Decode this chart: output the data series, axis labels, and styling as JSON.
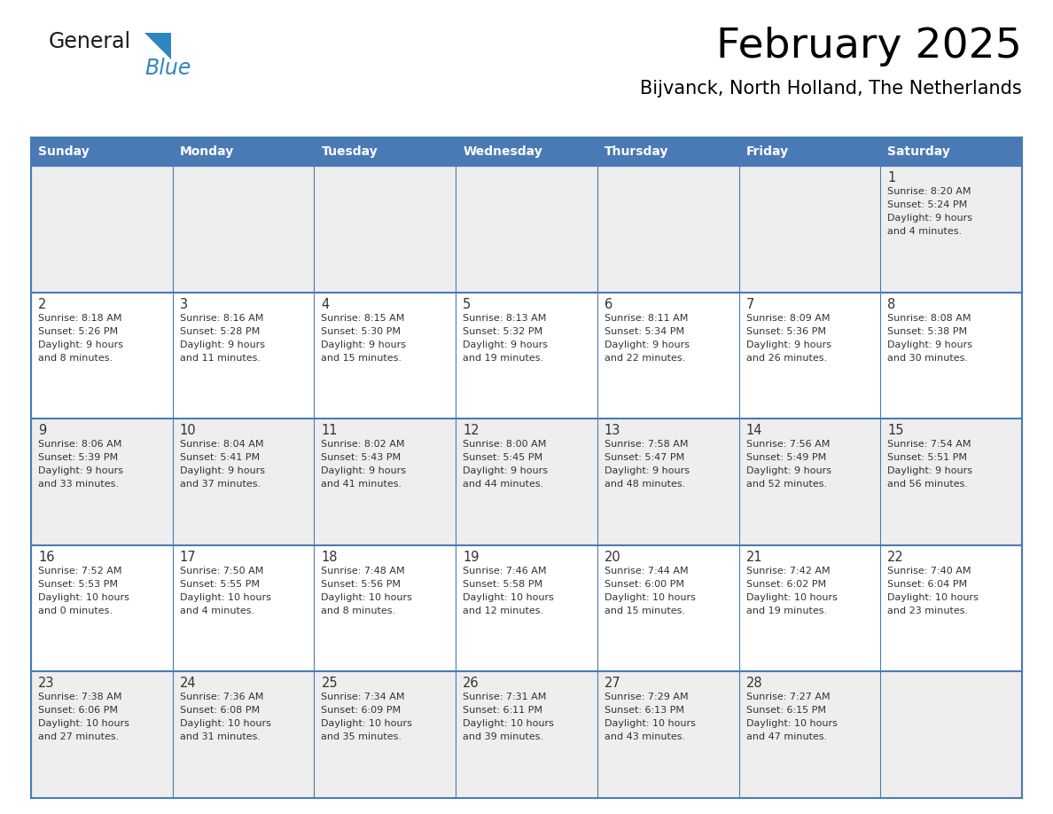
{
  "title": "February 2025",
  "subtitle": "Bijvanck, North Holland, The Netherlands",
  "header_bg": "#4a7ab5",
  "header_text": "#FFFFFF",
  "cell_bg_row0": "#EEEEEE",
  "cell_bg_row1": "#FFFFFF",
  "cell_bg_row2": "#EEEEEE",
  "cell_bg_row3": "#FFFFFF",
  "cell_bg_row4": "#EEEEEE",
  "border_color": "#4a7ab5",
  "day_number_color": "#333333",
  "cell_text_color": "#333333",
  "days_of_week": [
    "Sunday",
    "Monday",
    "Tuesday",
    "Wednesday",
    "Thursday",
    "Friday",
    "Saturday"
  ],
  "calendar": [
    [
      null,
      null,
      null,
      null,
      null,
      null,
      {
        "day": "1",
        "sunrise": "8:20 AM",
        "sunset": "5:24 PM",
        "daylight": "9 hours",
        "daylight2": "and 4 minutes."
      }
    ],
    [
      {
        "day": "2",
        "sunrise": "8:18 AM",
        "sunset": "5:26 PM",
        "daylight": "9 hours",
        "daylight2": "and 8 minutes."
      },
      {
        "day": "3",
        "sunrise": "8:16 AM",
        "sunset": "5:28 PM",
        "daylight": "9 hours",
        "daylight2": "and 11 minutes."
      },
      {
        "day": "4",
        "sunrise": "8:15 AM",
        "sunset": "5:30 PM",
        "daylight": "9 hours",
        "daylight2": "and 15 minutes."
      },
      {
        "day": "5",
        "sunrise": "8:13 AM",
        "sunset": "5:32 PM",
        "daylight": "9 hours",
        "daylight2": "and 19 minutes."
      },
      {
        "day": "6",
        "sunrise": "8:11 AM",
        "sunset": "5:34 PM",
        "daylight": "9 hours",
        "daylight2": "and 22 minutes."
      },
      {
        "day": "7",
        "sunrise": "8:09 AM",
        "sunset": "5:36 PM",
        "daylight": "9 hours",
        "daylight2": "and 26 minutes."
      },
      {
        "day": "8",
        "sunrise": "8:08 AM",
        "sunset": "5:38 PM",
        "daylight": "9 hours",
        "daylight2": "and 30 minutes."
      }
    ],
    [
      {
        "day": "9",
        "sunrise": "8:06 AM",
        "sunset": "5:39 PM",
        "daylight": "9 hours",
        "daylight2": "and 33 minutes."
      },
      {
        "day": "10",
        "sunrise": "8:04 AM",
        "sunset": "5:41 PM",
        "daylight": "9 hours",
        "daylight2": "and 37 minutes."
      },
      {
        "day": "11",
        "sunrise": "8:02 AM",
        "sunset": "5:43 PM",
        "daylight": "9 hours",
        "daylight2": "and 41 minutes."
      },
      {
        "day": "12",
        "sunrise": "8:00 AM",
        "sunset": "5:45 PM",
        "daylight": "9 hours",
        "daylight2": "and 44 minutes."
      },
      {
        "day": "13",
        "sunrise": "7:58 AM",
        "sunset": "5:47 PM",
        "daylight": "9 hours",
        "daylight2": "and 48 minutes."
      },
      {
        "day": "14",
        "sunrise": "7:56 AM",
        "sunset": "5:49 PM",
        "daylight": "9 hours",
        "daylight2": "and 52 minutes."
      },
      {
        "day": "15",
        "sunrise": "7:54 AM",
        "sunset": "5:51 PM",
        "daylight": "9 hours",
        "daylight2": "and 56 minutes."
      }
    ],
    [
      {
        "day": "16",
        "sunrise": "7:52 AM",
        "sunset": "5:53 PM",
        "daylight": "10 hours",
        "daylight2": "and 0 minutes."
      },
      {
        "day": "17",
        "sunrise": "7:50 AM",
        "sunset": "5:55 PM",
        "daylight": "10 hours",
        "daylight2": "and 4 minutes."
      },
      {
        "day": "18",
        "sunrise": "7:48 AM",
        "sunset": "5:56 PM",
        "daylight": "10 hours",
        "daylight2": "and 8 minutes."
      },
      {
        "day": "19",
        "sunrise": "7:46 AM",
        "sunset": "5:58 PM",
        "daylight": "10 hours",
        "daylight2": "and 12 minutes."
      },
      {
        "day": "20",
        "sunrise": "7:44 AM",
        "sunset": "6:00 PM",
        "daylight": "10 hours",
        "daylight2": "and 15 minutes."
      },
      {
        "day": "21",
        "sunrise": "7:42 AM",
        "sunset": "6:02 PM",
        "daylight": "10 hours",
        "daylight2": "and 19 minutes."
      },
      {
        "day": "22",
        "sunrise": "7:40 AM",
        "sunset": "6:04 PM",
        "daylight": "10 hours",
        "daylight2": "and 23 minutes."
      }
    ],
    [
      {
        "day": "23",
        "sunrise": "7:38 AM",
        "sunset": "6:06 PM",
        "daylight": "10 hours",
        "daylight2": "and 27 minutes."
      },
      {
        "day": "24",
        "sunrise": "7:36 AM",
        "sunset": "6:08 PM",
        "daylight": "10 hours",
        "daylight2": "and 31 minutes."
      },
      {
        "day": "25",
        "sunrise": "7:34 AM",
        "sunset": "6:09 PM",
        "daylight": "10 hours",
        "daylight2": "and 35 minutes."
      },
      {
        "day": "26",
        "sunrise": "7:31 AM",
        "sunset": "6:11 PM",
        "daylight": "10 hours",
        "daylight2": "and 39 minutes."
      },
      {
        "day": "27",
        "sunrise": "7:29 AM",
        "sunset": "6:13 PM",
        "daylight": "10 hours",
        "daylight2": "and 43 minutes."
      },
      {
        "day": "28",
        "sunrise": "7:27 AM",
        "sunset": "6:15 PM",
        "daylight": "10 hours",
        "daylight2": "and 47 minutes."
      },
      null
    ]
  ],
  "logo_general_color": "#1a1a1a",
  "logo_blue_color": "#2E86C1",
  "logo_triangle_color": "#2E86C1"
}
